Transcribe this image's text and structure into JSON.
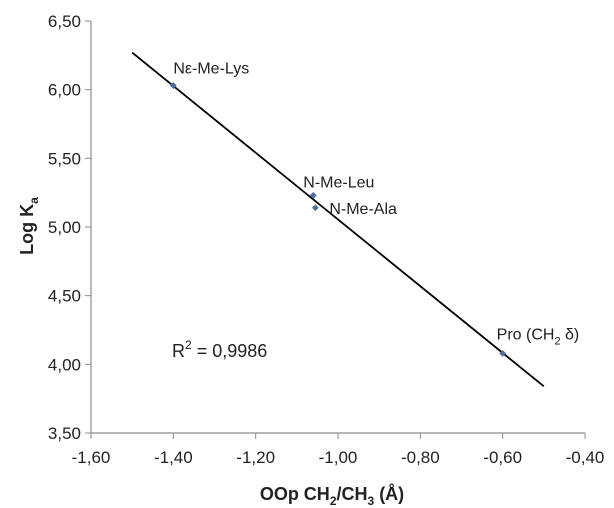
{
  "chart_data": {
    "type": "scatter",
    "title": "",
    "xlabel": {
      "main": "OOp CH",
      "sub1": "2",
      "mid": "/CH",
      "sub2": "3",
      "end": " (Å)"
    },
    "ylabel": {
      "main": "Log K",
      "sub": "a"
    },
    "xlim": [
      -1.6,
      -0.4
    ],
    "ylim": [
      3.5,
      6.5
    ],
    "x_ticks": [
      "-1,60",
      "-1,40",
      "-1,20",
      "-1,00",
      "-0,80",
      "-0,60",
      "-0,40"
    ],
    "x_tick_values": [
      -1.6,
      -1.4,
      -1.2,
      -1.0,
      -0.8,
      -0.6,
      -0.4
    ],
    "y_ticks": [
      "3,50",
      "4,00",
      "4,50",
      "5,00",
      "5,50",
      "6,00",
      "6,50"
    ],
    "y_tick_values": [
      3.5,
      4.0,
      4.5,
      5.0,
      5.5,
      6.0,
      6.5
    ],
    "points": [
      {
        "x": -1.4,
        "y": 6.03,
        "label": "Nε-Me-Lys"
      },
      {
        "x": -1.06,
        "y": 5.23,
        "label": "N-Me-Leu"
      },
      {
        "x": -1.055,
        "y": 5.14,
        "label": "N-Me-Ala"
      },
      {
        "x": -0.6,
        "y": 4.08,
        "label": "Pro (CH",
        "label_sub": "2",
        "label_end": " δ)"
      }
    ],
    "trendline": {
      "x": [
        -1.5,
        -0.5
      ],
      "y": [
        6.27,
        3.84
      ]
    },
    "annotation": {
      "main": "R",
      "sup": "2",
      "rest": " = 0,9986"
    },
    "grid": false,
    "legend": "none",
    "colors": {
      "marker": "#4a6fa5",
      "line": "#000000",
      "axis": "#8c8c8c"
    }
  }
}
